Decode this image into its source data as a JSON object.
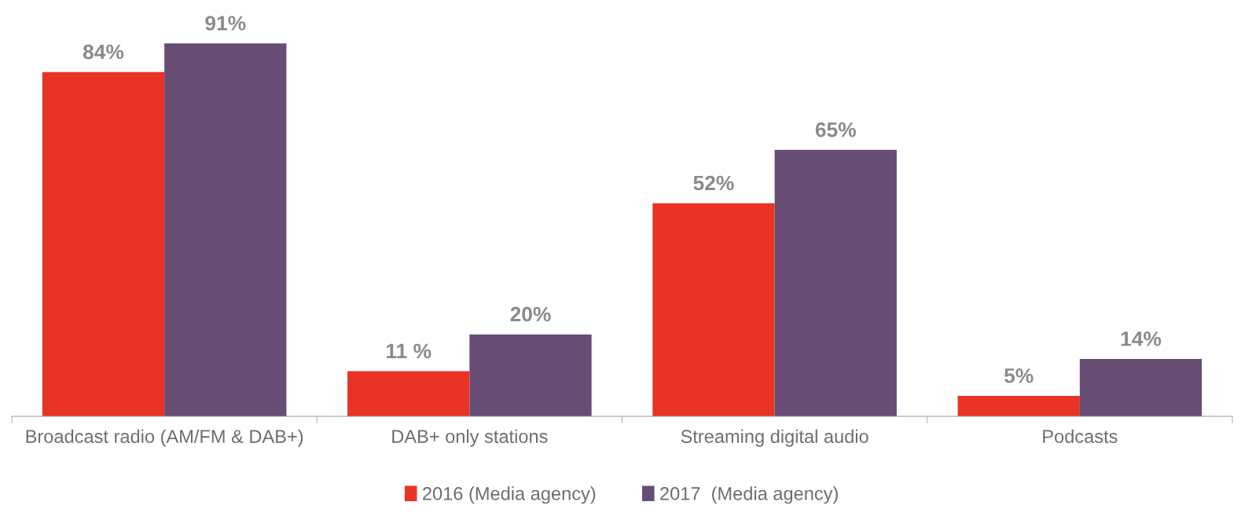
{
  "chart_data": {
    "type": "bar",
    "categories": [
      "Broadcast radio (AM/FM & DAB+)",
      "DAB+ only stations",
      "Streaming digital audio",
      "Podcasts"
    ],
    "series": [
      {
        "name": "2016 (Media agency)",
        "color": "#e93325",
        "values": [
          84,
          11,
          52,
          5
        ],
        "value_labels": [
          "84%",
          "11 %",
          "52%",
          "5%"
        ]
      },
      {
        "name": "2017  (Media agency)",
        "color": "#674d73",
        "values": [
          91,
          20,
          65,
          14
        ],
        "value_labels": [
          "91%",
          "20%",
          "65%",
          "14%"
        ]
      }
    ],
    "legend": "bottom",
    "grid": false
  }
}
